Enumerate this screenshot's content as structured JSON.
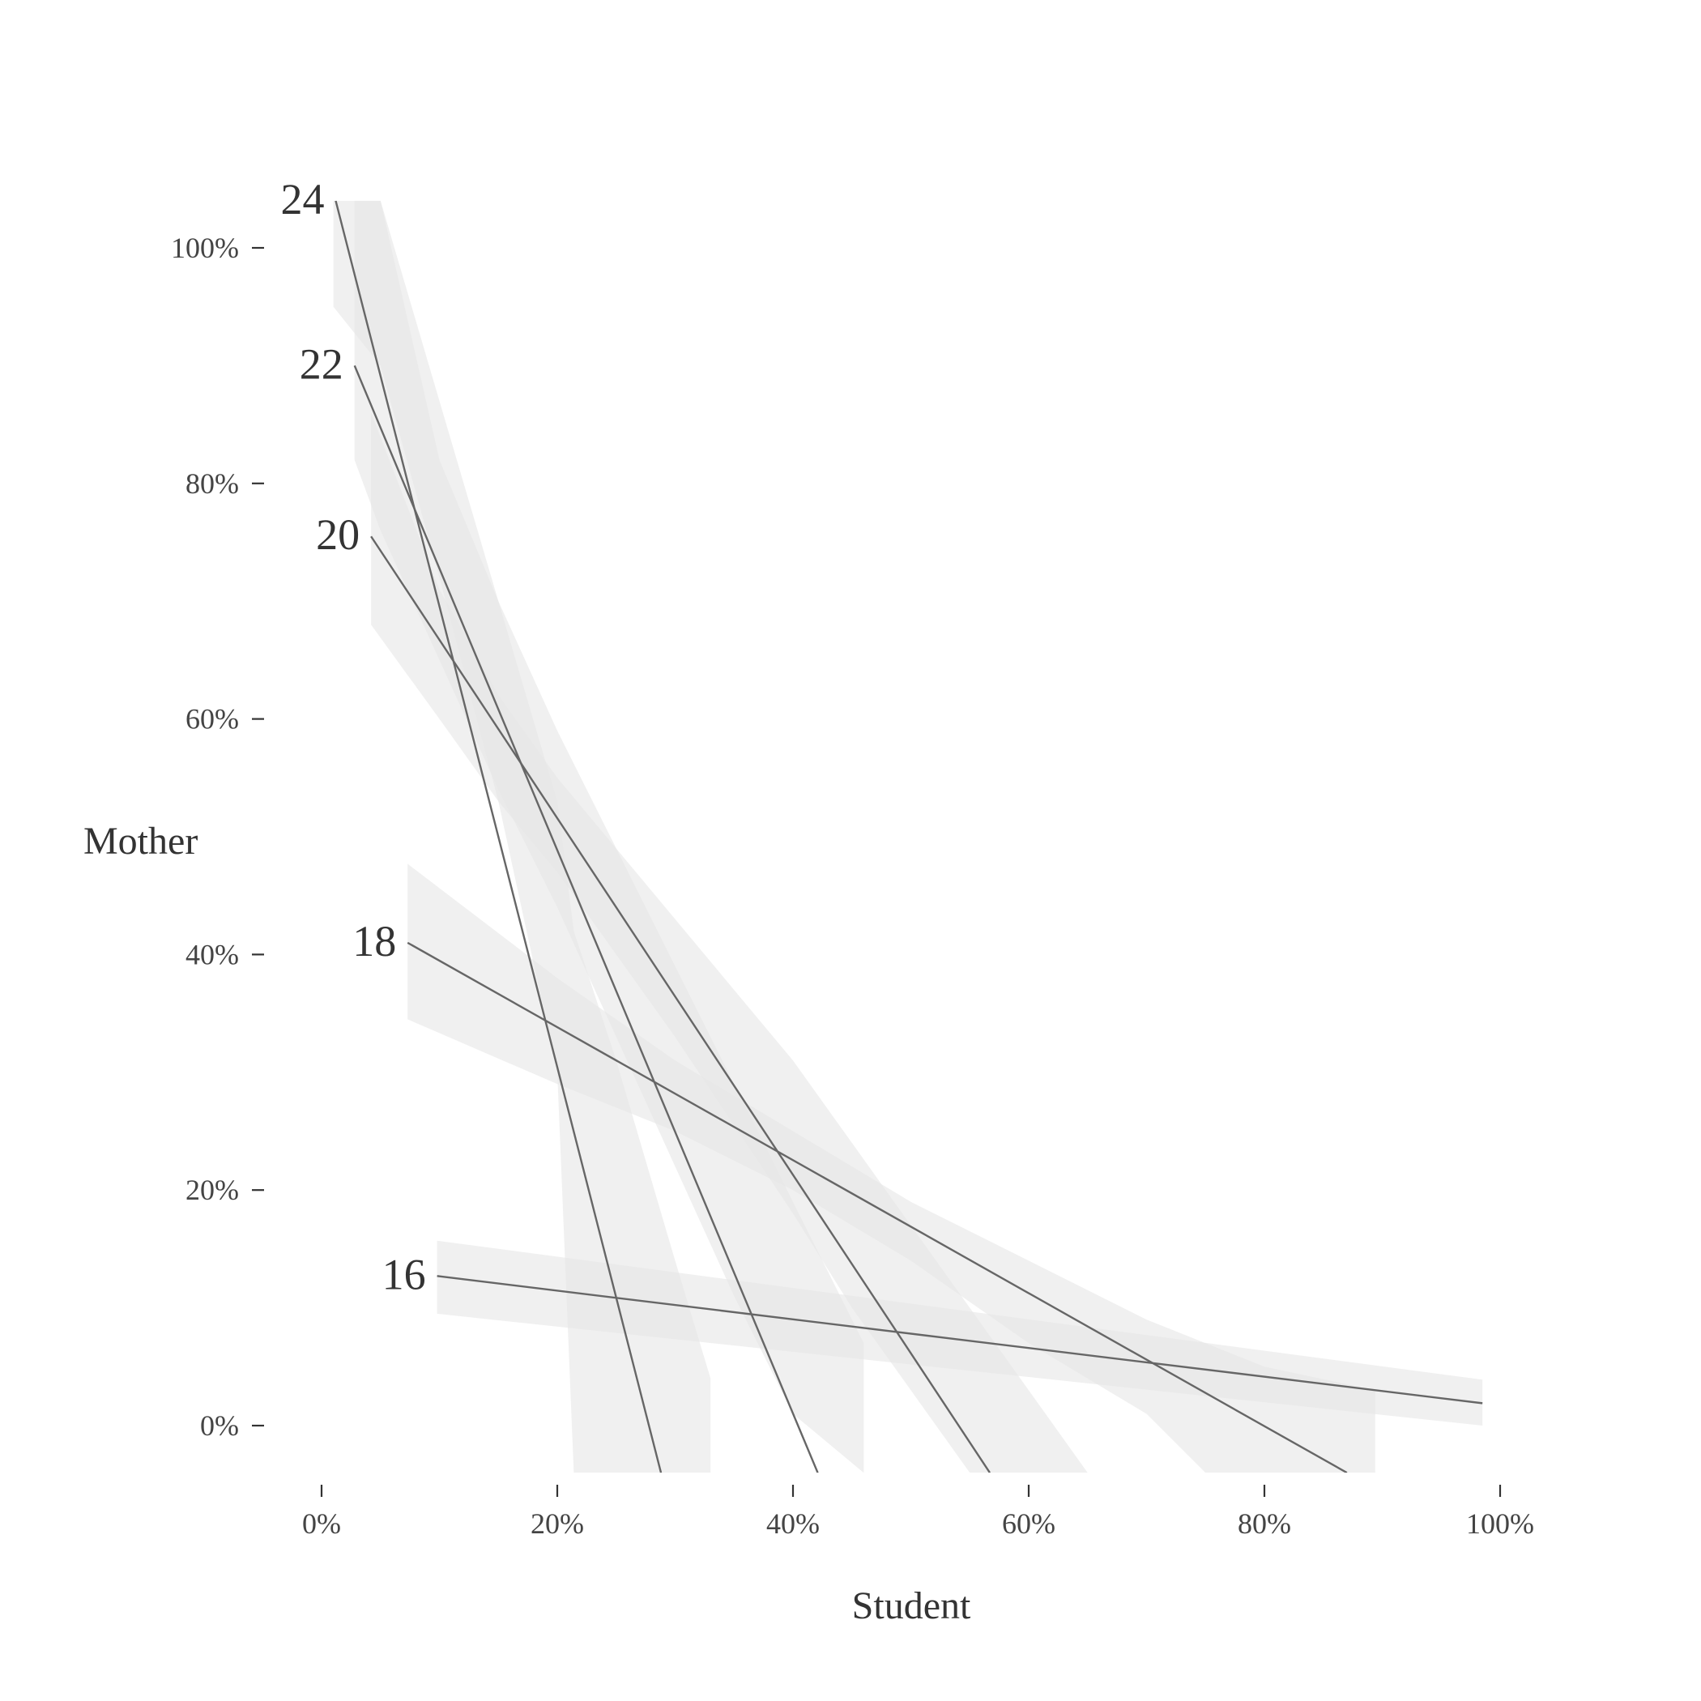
{
  "chart_data": {
    "type": "line",
    "title": "",
    "xlabel": "Student",
    "ylabel": "Mother",
    "xlim": [
      -0.05,
      1.05
    ],
    "ylim": [
      -0.04,
      1.04
    ],
    "x_ticks": [
      0,
      0.2,
      0.4,
      0.6,
      0.8,
      1.0
    ],
    "x_tick_labels": [
      "0%",
      "20%",
      "40%",
      "60%",
      "80%",
      "100%"
    ],
    "y_ticks": [
      0,
      0.2,
      0.4,
      0.6,
      0.8,
      1.0
    ],
    "y_tick_labels": [
      "0%",
      "20%",
      "40%",
      "60%",
      "80%",
      "100%"
    ],
    "grid": false,
    "colors": {
      "line": "#666666",
      "band": "#e6e6e6",
      "text": "#333333"
    },
    "series": [
      {
        "name": "24",
        "x": [
          0.012,
          0.288
        ],
        "y": [
          1.04,
          -0.04
        ],
        "band": {
          "x": [
            0.01,
            0.05,
            0.1,
            0.15,
            0.2,
            0.214,
            0.25,
            0.3,
            0.33,
            0.33
          ],
          "lower": [
            0.95,
            0.9,
            0.72,
            0.53,
            0.3,
            -0.04,
            -0.04,
            -0.04,
            -0.04,
            0.04
          ],
          "upper": [
            1.04,
            1.04,
            0.87,
            0.7,
            0.53,
            0.42,
            0.31,
            0.14,
            0.04,
            0.04
          ]
        }
      },
      {
        "name": "22",
        "x": [
          0.028,
          0.421
        ],
        "y": [
          0.9,
          -0.04
        ],
        "band": {
          "x": [
            0.028,
            0.05,
            0.1,
            0.15,
            0.2,
            0.25,
            0.3,
            0.35,
            0.4,
            0.46
          ],
          "lower": [
            0.82,
            0.76,
            0.65,
            0.54,
            0.44,
            0.33,
            0.22,
            0.11,
            0.01,
            -0.04
          ],
          "upper": [
            1.04,
            1.04,
            0.82,
            0.7,
            0.59,
            0.49,
            0.39,
            0.29,
            0.19,
            0.07
          ]
        }
      },
      {
        "name": "20",
        "x": [
          0.042,
          0.567
        ],
        "y": [
          0.755,
          -0.04
        ],
        "band": {
          "x": [
            0.042,
            0.1,
            0.15,
            0.2,
            0.3,
            0.4,
            0.45,
            0.5,
            0.55,
            0.6,
            0.65
          ],
          "lower": [
            0.68,
            0.6,
            0.53,
            0.47,
            0.33,
            0.18,
            0.1,
            0.03,
            -0.04,
            -0.04,
            -0.04
          ],
          "upper": [
            0.86,
            0.71,
            0.62,
            0.55,
            0.43,
            0.31,
            0.24,
            0.17,
            0.1,
            0.03,
            -0.04
          ]
        }
      },
      {
        "name": "18",
        "x": [
          0.073,
          0.87
        ],
        "y": [
          0.41,
          -0.04
        ],
        "band": {
          "x": [
            0.073,
            0.2,
            0.3,
            0.4,
            0.5,
            0.6,
            0.7,
            0.75,
            0.8,
            0.894
          ],
          "lower": [
            0.345,
            0.29,
            0.25,
            0.2,
            0.14,
            0.07,
            0.01,
            -0.04,
            -0.04,
            -0.04
          ],
          "upper": [
            0.477,
            0.38,
            0.31,
            0.25,
            0.19,
            0.14,
            0.09,
            0.07,
            0.05,
            0.03
          ]
        }
      },
      {
        "name": "16",
        "x": [
          0.098,
          0.985
        ],
        "y": [
          0.127,
          0.019
        ],
        "band": {
          "x": [
            0.098,
            0.985
          ],
          "lower": [
            0.095,
            0.0
          ],
          "upper": [
            0.157,
            0.039
          ]
        }
      }
    ]
  }
}
